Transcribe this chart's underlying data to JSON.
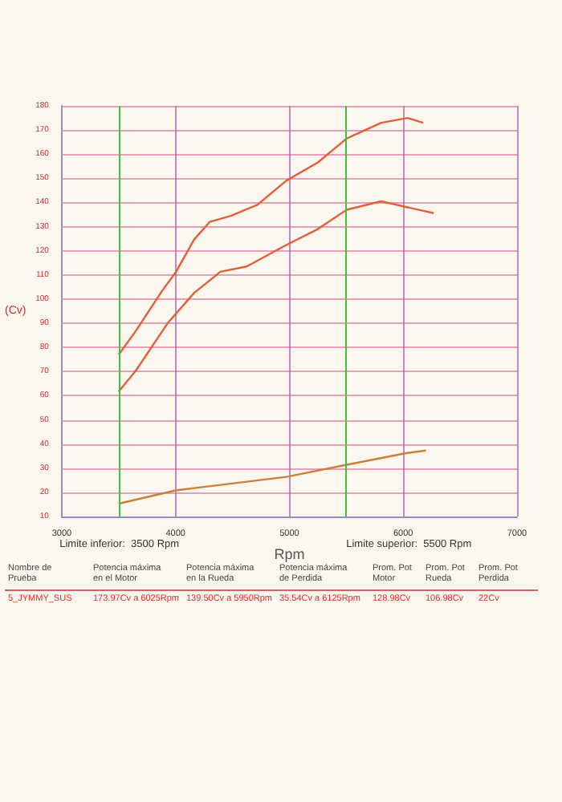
{
  "chart_data": {
    "type": "line",
    "xlabel": "Rpm",
    "ylabel": "(Cv)",
    "xlim": [
      3000,
      7000
    ],
    "xticks": [
      3000,
      4000,
      5000,
      6000,
      7000
    ],
    "ylim": [
      10,
      180
    ],
    "yticks": [
      10,
      20,
      30,
      40,
      50,
      60,
      70,
      80,
      90,
      100,
      110,
      120,
      130,
      140,
      150,
      160,
      170,
      180
    ],
    "grid": true,
    "marker": "none",
    "line_style": "solid",
    "series": [
      {
        "color": "#e0603a",
        "x": [
          3500,
          3653,
          3884,
          4000,
          4162,
          4301,
          4486,
          4718,
          4972,
          5250,
          5504,
          5806,
          6037,
          6176
        ],
        "values": [
          77,
          87,
          103.6,
          111,
          124.6,
          132,
          134.5,
          139,
          149,
          156.6,
          166.5,
          173,
          175,
          173
        ]
      },
      {
        "color": "#e0603a",
        "x": [
          3500,
          3653,
          3930,
          4162,
          4393,
          4625,
          4972,
          5250,
          5504,
          5806,
          6037,
          6268
        ],
        "values": [
          61.7,
          70.5,
          90,
          102.5,
          111.3,
          113.5,
          122.4,
          129,
          137,
          140.5,
          138,
          135.6
        ]
      },
      {
        "color": "#c8803a",
        "x": [
          3500,
          4000,
          4972,
          5504,
          6037,
          6199
        ],
        "values": [
          15.3,
          20.8,
          26.4,
          31.4,
          36.3,
          37.3
        ]
      }
    ],
    "ref_lines": [
      {
        "axis": "x",
        "value": 3500,
        "label": "Limite inferior:  3500 Rpm",
        "color": "#40c040"
      },
      {
        "axis": "x",
        "value": 5500,
        "label": "Limite superior:  5500 Rpm",
        "color": "#40c040"
      }
    ],
    "annotations": [
      "Nombre de\nPrueba",
      "Potencia máxima\nen el Motor",
      "Potencia máxima\nen la Rueda",
      "Potencia máxima\nde Perdida",
      "Prom. Pot\nMotor",
      "Prom. Pot\nRueda",
      "Prom. Pot\nPerdida",
      "5_JYMMY_SUS",
      "173.97Cv a 6025Rpm",
      "139.50Cv a 5950Rpm",
      "35.54Cv a 6125Rpm",
      "128.98Cv",
      "106.98Cv",
      "22Cv"
    ]
  }
}
